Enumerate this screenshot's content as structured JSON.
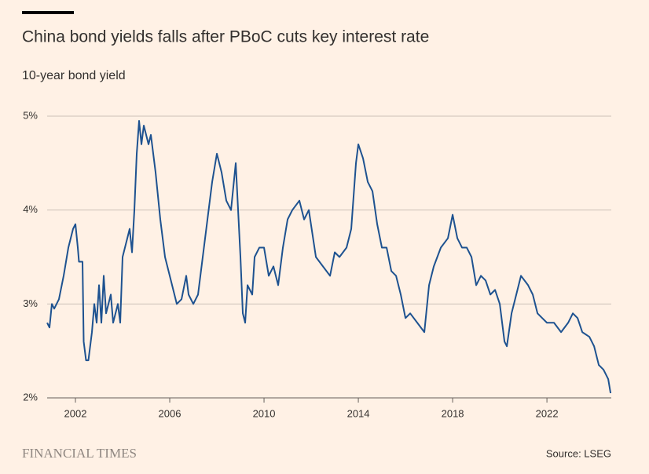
{
  "chart_data": {
    "type": "line",
    "title": "China bond yields falls after PBoC cuts key interest rate",
    "subtitle": "10-year bond yield",
    "brand": "FINANCIAL TIMES",
    "source": "Source: LSEG",
    "xlim": [
      2000.8,
      2024.73
    ],
    "xticks": [
      2002,
      2006,
      2010,
      2014,
      2018,
      2022
    ],
    "ylim": [
      2,
      5
    ],
    "yticks": [
      {
        "value": 2,
        "label": "2%"
      },
      {
        "value": 3,
        "label": "3%"
      },
      {
        "value": 4,
        "label": "4%"
      },
      {
        "value": 5,
        "label": "5%"
      }
    ],
    "grid": true,
    "series": [
      {
        "color": "#1e5290",
        "x": [
          2000.8,
          2000.9,
          2001.0,
          2001.1,
          2001.3,
          2001.5,
          2001.7,
          2001.9,
          2002.0,
          2002.1,
          2002.15,
          2002.3,
          2002.35,
          2002.45,
          2002.55,
          2002.7,
          2002.8,
          2002.9,
          2003.0,
          2003.1,
          2003.2,
          2003.3,
          2003.5,
          2003.6,
          2003.8,
          2003.9,
          2004.0,
          2004.2,
          2004.3,
          2004.4,
          2004.5,
          2004.6,
          2004.7,
          2004.8,
          2004.9,
          2005.1,
          2005.2,
          2005.4,
          2005.6,
          2005.8,
          2006.0,
          2006.2,
          2006.3,
          2006.5,
          2006.7,
          2006.8,
          2007.0,
          2007.2,
          2007.4,
          2007.6,
          2007.8,
          2008.0,
          2008.2,
          2008.4,
          2008.6,
          2008.8,
          2009.0,
          2009.1,
          2009.2,
          2009.3,
          2009.5,
          2009.6,
          2009.8,
          2010.0,
          2010.2,
          2010.4,
          2010.6,
          2010.8,
          2011.0,
          2011.2,
          2011.5,
          2011.7,
          2011.9,
          2012.2,
          2012.5,
          2012.8,
          2013.0,
          2013.2,
          2013.5,
          2013.7,
          2013.9,
          2014.0,
          2014.2,
          2014.4,
          2014.6,
          2014.8,
          2015.0,
          2015.2,
          2015.4,
          2015.6,
          2015.8,
          2016.0,
          2016.2,
          2016.5,
          2016.8,
          2017.0,
          2017.2,
          2017.5,
          2017.8,
          2018.0,
          2018.2,
          2018.4,
          2018.6,
          2018.8,
          2019.0,
          2019.2,
          2019.4,
          2019.6,
          2019.8,
          2020.0,
          2020.2,
          2020.3,
          2020.5,
          2020.7,
          2020.9,
          2021.2,
          2021.4,
          2021.6,
          2021.8,
          2022.0,
          2022.3,
          2022.6,
          2022.9,
          2023.1,
          2023.3,
          2023.5,
          2023.8,
          2024.0,
          2024.2,
          2024.4,
          2024.6,
          2024.7
        ],
        "values": [
          2.8,
          2.75,
          3.0,
          2.95,
          3.05,
          3.3,
          3.6,
          3.8,
          3.85,
          3.6,
          3.45,
          3.45,
          2.6,
          2.4,
          2.4,
          2.7,
          3.0,
          2.8,
          3.2,
          2.8,
          3.3,
          2.9,
          3.1,
          2.8,
          3.0,
          2.8,
          3.5,
          3.7,
          3.8,
          3.55,
          4.0,
          4.6,
          4.95,
          4.7,
          4.9,
          4.7,
          4.8,
          4.4,
          3.9,
          3.5,
          3.3,
          3.1,
          3.0,
          3.05,
          3.3,
          3.1,
          3.0,
          3.1,
          3.5,
          3.9,
          4.3,
          4.6,
          4.4,
          4.1,
          4.0,
          4.5,
          3.5,
          2.9,
          2.8,
          3.2,
          3.1,
          3.5,
          3.6,
          3.6,
          3.3,
          3.4,
          3.2,
          3.6,
          3.9,
          4.0,
          4.1,
          3.9,
          4.0,
          3.5,
          3.4,
          3.3,
          3.55,
          3.5,
          3.6,
          3.8,
          4.5,
          4.7,
          4.55,
          4.3,
          4.2,
          3.85,
          3.6,
          3.6,
          3.35,
          3.3,
          3.1,
          2.85,
          2.9,
          2.8,
          2.7,
          3.2,
          3.4,
          3.6,
          3.7,
          3.95,
          3.7,
          3.6,
          3.6,
          3.5,
          3.2,
          3.3,
          3.25,
          3.1,
          3.15,
          3.0,
          2.6,
          2.55,
          2.9,
          3.1,
          3.3,
          3.2,
          3.1,
          2.9,
          2.85,
          2.8,
          2.8,
          2.7,
          2.8,
          2.9,
          2.85,
          2.7,
          2.65,
          2.55,
          2.35,
          2.3,
          2.2,
          2.05
        ]
      }
    ]
  }
}
